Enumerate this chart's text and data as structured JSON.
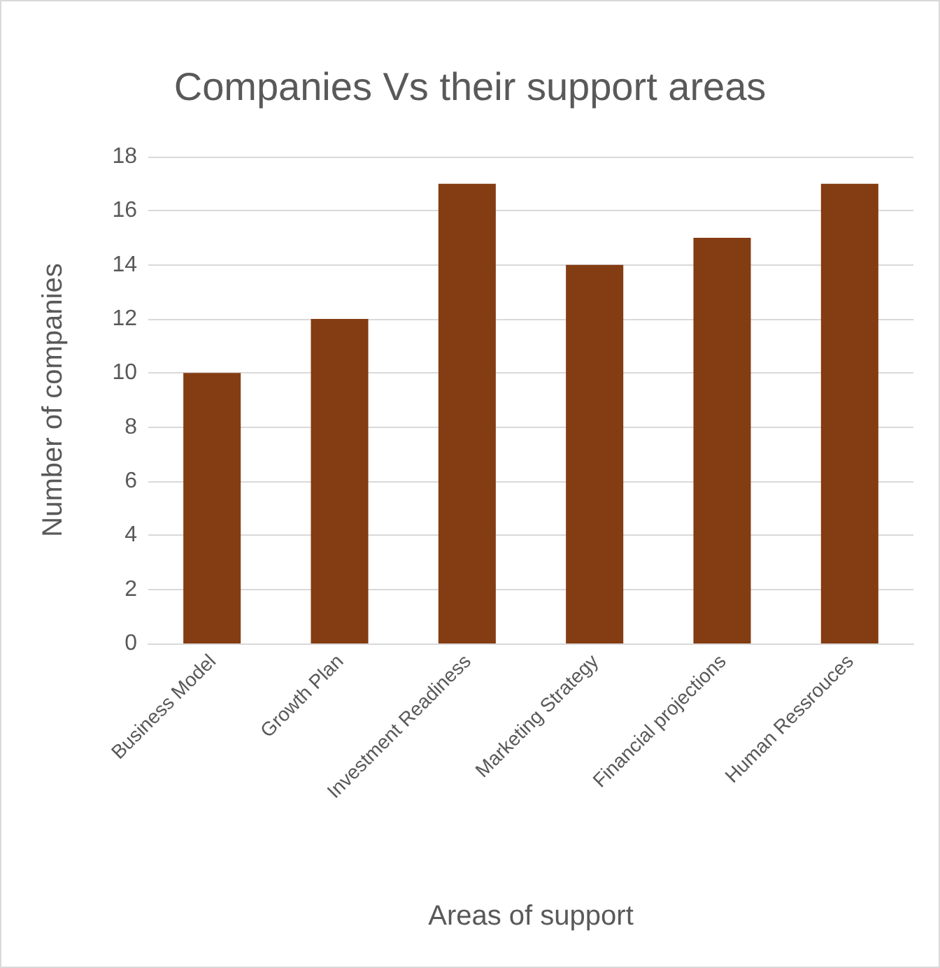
{
  "chart_data": {
    "type": "bar",
    "title": "Companies Vs their support areas",
    "xlabel": "Areas of support",
    "ylabel": "Number of companies",
    "categories": [
      "Business Model",
      "Growth Plan",
      "Investment Readiness",
      "Marketing Strategy",
      "Financial projections",
      "Human Ressrouces"
    ],
    "values": [
      10,
      12,
      17,
      14,
      15,
      17
    ],
    "color": "#843c12",
    "ylim": [
      0,
      18
    ],
    "yticks": [
      0,
      2,
      4,
      6,
      8,
      10,
      12,
      14,
      16,
      18
    ],
    "grid": "y"
  }
}
